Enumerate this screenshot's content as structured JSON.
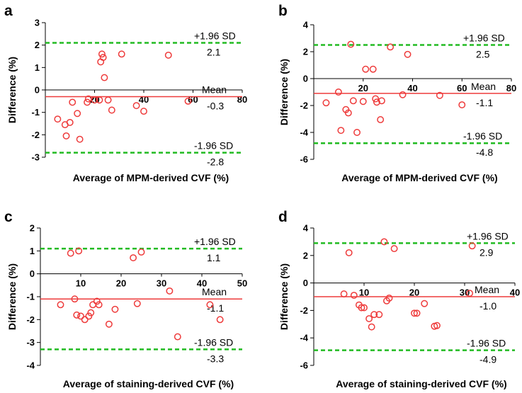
{
  "chart_data": [
    {
      "type": "scatter",
      "panel": "a",
      "xlabel": "Average of MPM-derived CVF (%)",
      "ylabel": "Difference (%)",
      "xlim": [
        0,
        80
      ],
      "ylim": [
        -3,
        3
      ],
      "xticks": [
        "20",
        "40",
        "60",
        "80"
      ],
      "yticks": [
        "3",
        "2",
        "1",
        "0",
        "-1",
        "-2",
        "-3"
      ],
      "points": [
        [
          5,
          -1.3
        ],
        [
          8,
          -1.55
        ],
        [
          8.5,
          -2.05
        ],
        [
          10,
          -1.45
        ],
        [
          11,
          -0.55
        ],
        [
          13,
          -1.05
        ],
        [
          14,
          -2.2
        ],
        [
          17,
          -0.55
        ],
        [
          17.5,
          -0.4
        ],
        [
          20,
          -0.45
        ],
        [
          22,
          -0.45
        ],
        [
          22.5,
          1.25
        ],
        [
          23,
          1.6
        ],
        [
          23.5,
          1.45
        ],
        [
          24,
          0.55
        ],
        [
          25.5,
          -0.45
        ],
        [
          27,
          -0.9
        ],
        [
          31,
          1.6
        ],
        [
          37,
          -0.7
        ],
        [
          40,
          -0.95
        ],
        [
          50,
          1.55
        ],
        [
          58,
          -0.5
        ]
      ],
      "lines": [
        {
          "label": "+1.96 SD",
          "value": 2.1,
          "value_label": "2.1"
        },
        {
          "label": "Mean",
          "value": -0.3,
          "value_label": "-0.3"
        },
        {
          "label": "-1.96 SD",
          "value": -2.8,
          "value_label": "-2.8"
        }
      ]
    },
    {
      "type": "scatter",
      "panel": "b",
      "xlabel": "Average of MPM-derived CVF (%)",
      "ylabel": "Difference (%)",
      "xlim": [
        0,
        80
      ],
      "ylim": [
        -6,
        4
      ],
      "xticks": [
        "20",
        "40",
        "60",
        "80"
      ],
      "yticks": [
        "4",
        "2",
        "0",
        "-2",
        "-4",
        "-6"
      ],
      "points": [
        [
          5,
          -1.8
        ],
        [
          10,
          -1.0
        ],
        [
          11,
          -3.85
        ],
        [
          13,
          -2.3
        ],
        [
          14,
          -2.55
        ],
        [
          15,
          2.55
        ],
        [
          16,
          -1.65
        ],
        [
          17.5,
          -4.0
        ],
        [
          20,
          -1.7
        ],
        [
          21,
          0.7
        ],
        [
          24,
          0.7
        ],
        [
          25,
          -1.5
        ],
        [
          25.5,
          -1.75
        ],
        [
          27,
          -3.05
        ],
        [
          27.5,
          -1.65
        ],
        [
          31,
          2.35
        ],
        [
          36,
          -1.2
        ],
        [
          38,
          1.8
        ],
        [
          51,
          -1.25
        ],
        [
          60,
          -1.95
        ]
      ],
      "lines": [
        {
          "label": "+1.96 SD",
          "value": 2.5,
          "value_label": "2.5"
        },
        {
          "label": "Mean",
          "value": -1.1,
          "value_label": "-1.1"
        },
        {
          "label": "-1.96 SD",
          "value": -4.8,
          "value_label": "-4.8"
        }
      ]
    },
    {
      "type": "scatter",
      "panel": "c",
      "xlabel": "Average of staining-derived CVF (%)",
      "ylabel": "Difference (%)",
      "xlim": [
        0,
        50
      ],
      "ylim": [
        -4,
        2
      ],
      "xticks": [
        "10",
        "20",
        "30",
        "40",
        "50"
      ],
      "yticks": [
        "2",
        "1",
        "0",
        "-1",
        "-2",
        "-3",
        "-4"
      ],
      "points": [
        [
          5,
          -1.35
        ],
        [
          7.5,
          0.9
        ],
        [
          8.5,
          -1.1
        ],
        [
          9,
          -1.8
        ],
        [
          9.5,
          1.0
        ],
        [
          10,
          -1.85
        ],
        [
          11,
          -2.0
        ],
        [
          12,
          -1.85
        ],
        [
          12.5,
          -1.7
        ],
        [
          13,
          -1.35
        ],
        [
          14,
          -1.2
        ],
        [
          14.5,
          -1.35
        ],
        [
          17,
          -2.2
        ],
        [
          18.5,
          -1.55
        ],
        [
          23,
          0.7
        ],
        [
          24,
          -1.3
        ],
        [
          25,
          0.95
        ],
        [
          32,
          -0.75
        ],
        [
          34,
          -2.75
        ],
        [
          42,
          -1.35
        ],
        [
          44.5,
          -2.0
        ]
      ],
      "lines": [
        {
          "label": "+1.96 SD",
          "value": 1.1,
          "value_label": "1.1"
        },
        {
          "label": "Mean",
          "value": -1.1,
          "value_label": "-1.1"
        },
        {
          "label": "-1.96 SD",
          "value": -3.3,
          "value_label": "-3.3"
        }
      ]
    },
    {
      "type": "scatter",
      "panel": "d",
      "xlabel": "Average of staining-derived CVF (%)",
      "ylabel": "Difference (%)",
      "xlim": [
        0,
        40
      ],
      "ylim": [
        -6,
        4
      ],
      "xticks": [
        "10",
        "20",
        "30",
        "40"
      ],
      "yticks": [
        "4",
        "2",
        "0",
        "-2",
        "-4",
        "-6"
      ],
      "points": [
        [
          6,
          -0.8
        ],
        [
          7,
          2.2
        ],
        [
          8,
          -0.9
        ],
        [
          9,
          -1.6
        ],
        [
          9.5,
          -1.8
        ],
        [
          10,
          -1.8
        ],
        [
          11,
          -2.6
        ],
        [
          11.5,
          -3.2
        ],
        [
          12,
          -2.3
        ],
        [
          13,
          -2.3
        ],
        [
          14,
          3.0
        ],
        [
          14.5,
          -1.3
        ],
        [
          15,
          -1.1
        ],
        [
          16,
          2.5
        ],
        [
          20,
          -2.2
        ],
        [
          20.5,
          -2.2
        ],
        [
          22,
          -1.5
        ],
        [
          24,
          -3.15
        ],
        [
          24.5,
          -3.1
        ],
        [
          31,
          -0.75
        ],
        [
          31.5,
          2.7
        ]
      ],
      "lines": [
        {
          "label": "+1.96 SD",
          "value": 2.9,
          "value_label": "2.9"
        },
        {
          "label": "Mean",
          "value": -1.0,
          "value_label": "-1.0"
        },
        {
          "label": "-1.96 SD",
          "value": -4.9,
          "value_label": "-4.9"
        }
      ]
    }
  ],
  "colors": {
    "point_stroke": "#ee3b3b",
    "mean_line": "#ee3b3b",
    "sd_line": "#22bb22",
    "axis": "#000000"
  }
}
